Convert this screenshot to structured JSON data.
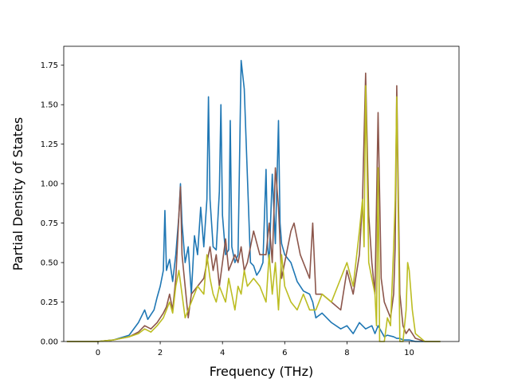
{
  "chart_data": {
    "type": "line",
    "title": "",
    "xlabel": "Frequency (THz)",
    "ylabel": "Partial Density of States",
    "xlim": [
      -1.1,
      11.6
    ],
    "ylim": [
      0.0,
      1.87
    ],
    "xticks": [
      0,
      2,
      4,
      6,
      8,
      10
    ],
    "yticks": [
      0.0,
      0.25,
      0.5,
      0.75,
      1.0,
      1.25,
      1.5,
      1.75
    ],
    "xtick_labels": [
      "0",
      "2",
      "4",
      "6",
      "8",
      "10"
    ],
    "ytick_labels": [
      "0.00",
      "0.25",
      "0.50",
      "0.75",
      "1.00",
      "1.25",
      "1.50",
      "1.75"
    ],
    "grid": false,
    "legend": "none",
    "series": [
      {
        "color": "#1f77b4",
        "x": [
          -1.0,
          0.0,
          0.5,
          1.0,
          1.3,
          1.5,
          1.6,
          1.7,
          1.8,
          1.9,
          2.0,
          2.1,
          2.15,
          2.2,
          2.3,
          2.4,
          2.5,
          2.6,
          2.65,
          2.7,
          2.8,
          2.9,
          3.0,
          3.1,
          3.2,
          3.3,
          3.4,
          3.5,
          3.55,
          3.6,
          3.7,
          3.8,
          3.9,
          3.95,
          4.0,
          4.1,
          4.2,
          4.25,
          4.3,
          4.4,
          4.5,
          4.6,
          4.7,
          4.8,
          4.9,
          5.0,
          5.1,
          5.2,
          5.3,
          5.4,
          5.45,
          5.5,
          5.6,
          5.7,
          5.8,
          5.85,
          5.9,
          6.0,
          6.2,
          6.4,
          6.6,
          6.8,
          6.9,
          7.0,
          7.2,
          7.5,
          7.8,
          8.0,
          8.2,
          8.4,
          8.6,
          8.8,
          8.9,
          9.0,
          9.2,
          9.3,
          9.5,
          9.6,
          9.7,
          9.8,
          9.9,
          10.0,
          10.2,
          10.5,
          11.0
        ],
        "y": [
          0.0,
          0.0,
          0.01,
          0.04,
          0.12,
          0.2,
          0.14,
          0.17,
          0.2,
          0.28,
          0.35,
          0.45,
          0.83,
          0.45,
          0.52,
          0.38,
          0.55,
          0.8,
          1.0,
          0.75,
          0.5,
          0.6,
          0.3,
          0.67,
          0.55,
          0.85,
          0.6,
          0.9,
          1.55,
          0.9,
          0.6,
          0.58,
          0.95,
          1.5,
          0.8,
          0.55,
          0.58,
          1.4,
          0.6,
          0.5,
          0.55,
          1.78,
          1.6,
          1.05,
          0.5,
          0.48,
          0.42,
          0.45,
          0.5,
          1.09,
          0.6,
          0.5,
          1.06,
          0.62,
          1.4,
          0.75,
          0.62,
          0.55,
          0.5,
          0.38,
          0.32,
          0.3,
          0.25,
          0.15,
          0.18,
          0.12,
          0.08,
          0.1,
          0.05,
          0.12,
          0.08,
          0.1,
          0.05,
          0.1,
          0.03,
          0.04,
          0.03,
          0.02,
          0.02,
          0.01,
          0.01,
          0.01,
          0.0,
          0.0,
          0.0
        ]
      },
      {
        "color": "#8c564b",
        "x": [
          -1.0,
          0.0,
          0.5,
          1.0,
          1.3,
          1.5,
          1.7,
          1.9,
          2.1,
          2.2,
          2.3,
          2.4,
          2.5,
          2.6,
          2.65,
          2.7,
          2.8,
          2.9,
          3.0,
          3.2,
          3.4,
          3.5,
          3.6,
          3.7,
          3.8,
          3.9,
          4.0,
          4.1,
          4.2,
          4.3,
          4.4,
          4.5,
          4.6,
          4.7,
          4.8,
          5.0,
          5.2,
          5.4,
          5.5,
          5.6,
          5.7,
          5.8,
          5.9,
          6.0,
          6.2,
          6.3,
          6.5,
          6.8,
          6.9,
          7.0,
          7.2,
          7.5,
          7.8,
          8.0,
          8.2,
          8.4,
          8.5,
          8.6,
          8.7,
          8.8,
          8.9,
          9.0,
          9.1,
          9.2,
          9.3,
          9.4,
          9.5,
          9.55,
          9.6,
          9.7,
          9.8,
          9.9,
          10.0,
          10.1,
          10.2,
          10.5,
          11.0
        ],
        "y": [
          0.0,
          0.0,
          0.01,
          0.03,
          0.06,
          0.1,
          0.08,
          0.12,
          0.18,
          0.22,
          0.3,
          0.2,
          0.4,
          0.8,
          0.98,
          0.55,
          0.35,
          0.15,
          0.3,
          0.35,
          0.4,
          0.5,
          0.6,
          0.45,
          0.55,
          0.35,
          0.5,
          0.65,
          0.45,
          0.5,
          0.55,
          0.5,
          0.6,
          0.45,
          0.5,
          0.7,
          0.55,
          0.55,
          0.75,
          0.5,
          1.1,
          0.85,
          0.4,
          0.5,
          0.7,
          0.75,
          0.55,
          0.4,
          0.75,
          0.3,
          0.3,
          0.25,
          0.2,
          0.45,
          0.3,
          0.55,
          0.9,
          1.7,
          0.8,
          0.5,
          0.3,
          1.45,
          0.4,
          0.25,
          0.2,
          0.15,
          0.3,
          0.6,
          1.62,
          0.3,
          0.1,
          0.05,
          0.08,
          0.05,
          0.02,
          0.0,
          0.0
        ]
      },
      {
        "color": "#bcbd22",
        "x": [
          -1.0,
          0.0,
          0.5,
          1.0,
          1.3,
          1.5,
          1.7,
          1.9,
          2.1,
          2.2,
          2.3,
          2.4,
          2.5,
          2.6,
          2.7,
          2.8,
          2.9,
          3.0,
          3.2,
          3.4,
          3.5,
          3.6,
          3.7,
          3.8,
          3.9,
          4.0,
          4.1,
          4.2,
          4.3,
          4.4,
          4.5,
          4.6,
          4.7,
          4.8,
          5.0,
          5.2,
          5.4,
          5.5,
          5.6,
          5.7,
          5.8,
          5.9,
          6.0,
          6.2,
          6.4,
          6.6,
          6.8,
          7.0,
          7.2,
          7.5,
          7.8,
          8.0,
          8.2,
          8.4,
          8.5,
          8.55,
          8.6,
          8.7,
          8.8,
          8.9,
          8.95,
          9.0,
          9.05,
          9.1,
          9.2,
          9.3,
          9.4,
          9.5,
          9.55,
          9.6,
          9.7,
          9.8,
          9.9,
          9.95,
          10.0,
          10.1,
          10.2,
          10.5,
          11.0
        ],
        "y": [
          0.0,
          0.0,
          0.01,
          0.03,
          0.05,
          0.08,
          0.06,
          0.1,
          0.15,
          0.2,
          0.25,
          0.18,
          0.35,
          0.45,
          0.3,
          0.15,
          0.2,
          0.25,
          0.35,
          0.3,
          0.55,
          0.4,
          0.3,
          0.25,
          0.35,
          0.3,
          0.25,
          0.4,
          0.3,
          0.2,
          0.35,
          0.3,
          0.45,
          0.35,
          0.4,
          0.35,
          0.25,
          0.55,
          0.3,
          0.5,
          0.2,
          0.55,
          0.35,
          0.25,
          0.2,
          0.3,
          0.2,
          0.2,
          0.3,
          0.25,
          0.4,
          0.5,
          0.35,
          0.7,
          0.9,
          0.6,
          1.62,
          0.5,
          0.4,
          0.3,
          0.1,
          1.1,
          0.0,
          0.0,
          0.0,
          0.15,
          0.1,
          0.6,
          0.9,
          1.55,
          0.0,
          0.0,
          0.2,
          0.5,
          0.45,
          0.2,
          0.05,
          0.0,
          0.0
        ]
      }
    ]
  }
}
